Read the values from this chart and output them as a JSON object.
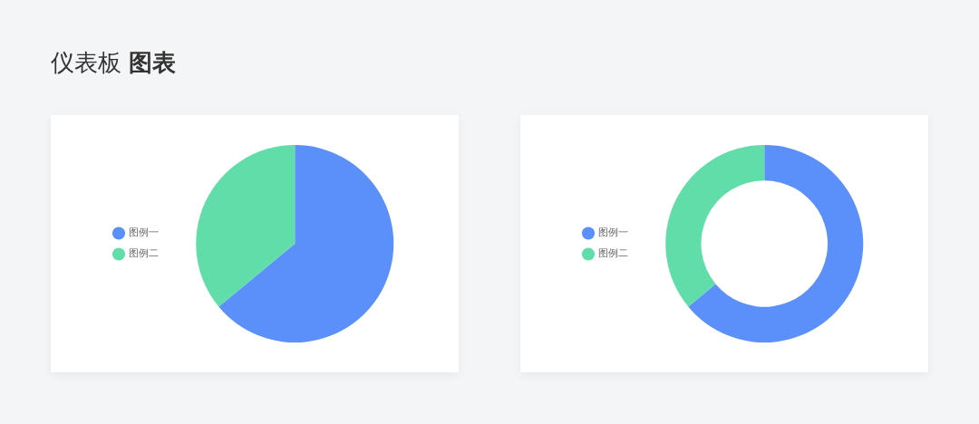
{
  "chart_data": [
    {
      "type": "pie",
      "title": "仪表板 图表",
      "categories": [
        "图例一",
        "图例二"
      ],
      "values": [
        64,
        36
      ],
      "colors": [
        "#5b8ff9",
        "#61ddaa"
      ],
      "legend": "left"
    },
    {
      "type": "donut",
      "categories": [
        "图例一",
        "图例二"
      ],
      "values": [
        64,
        36
      ],
      "colors": [
        "#5b8ff9",
        "#61ddaa"
      ],
      "legend": "left"
    }
  ]
}
